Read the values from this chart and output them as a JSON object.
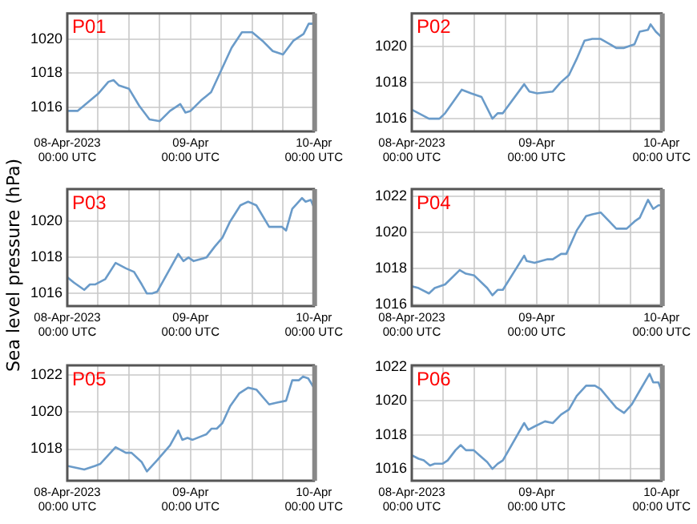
{
  "chart_data": [
    {
      "type": "line",
      "title": "P01",
      "color": "#6a9bc9",
      "grid": true,
      "xlim": [
        "2023-04-08T00:00",
        "2023-04-10T00:00"
      ],
      "ylim": [
        1014.6,
        1021.5
      ],
      "yticks": [
        1016,
        1018,
        1020
      ],
      "xticks": [
        {
          "value": "2023-04-08T00:00",
          "label": "08-Apr-2023\n00:00 UTC"
        },
        {
          "value": "2023-04-08T06:00",
          "label": null
        },
        {
          "value": "2023-04-08T12:00",
          "label": null
        },
        {
          "value": "2023-04-08T18:00",
          "label": null
        },
        {
          "value": "2023-04-09T00:00",
          "label": "09-Apr\n00:00 UTC"
        },
        {
          "value": "2023-04-09T06:00",
          "label": null
        },
        {
          "value": "2023-04-09T12:00",
          "label": null
        },
        {
          "value": "2023-04-09T18:00",
          "label": null
        },
        {
          "value": "2023-04-10T00:00",
          "label": "10-Apr\n00:00 UTC"
        }
      ],
      "x": [
        "2023-04-08T00:00",
        "2023-04-08T02:00",
        "2023-04-08T04:00",
        "2023-04-08T06:00",
        "2023-04-08T08:00",
        "2023-04-08T09:00",
        "2023-04-08T10:00",
        "2023-04-08T12:00",
        "2023-04-08T14:00",
        "2023-04-08T16:00",
        "2023-04-08T18:00",
        "2023-04-08T20:00",
        "2023-04-08T22:00",
        "2023-04-08T23:00",
        "2023-04-09T00:00",
        "2023-04-09T02:00",
        "2023-04-09T04:00",
        "2023-04-09T06:00",
        "2023-04-09T08:00",
        "2023-04-09T10:00",
        "2023-04-09T12:00",
        "2023-04-09T14:00",
        "2023-04-09T16:00",
        "2023-04-09T18:00",
        "2023-04-09T20:00",
        "2023-04-09T22:00",
        "2023-04-09T23:00",
        "2023-04-10T00:00"
      ],
      "values": [
        1015.8,
        1015.8,
        1016.3,
        1016.8,
        1017.5,
        1017.6,
        1017.3,
        1017.1,
        1016.1,
        1015.3,
        1015.2,
        1015.8,
        1016.2,
        1015.7,
        1015.8,
        1016.4,
        1016.9,
        1018.2,
        1019.5,
        1020.4,
        1020.4,
        1019.9,
        1019.3,
        1019.1,
        1019.9,
        1020.3,
        1020.9,
        1020.9
      ]
    },
    {
      "type": "line",
      "title": "P02",
      "color": "#6a9bc9",
      "grid": true,
      "xlim": [
        "2023-04-08T00:00",
        "2023-04-10T00:00"
      ],
      "ylim": [
        1015.3,
        1021.8
      ],
      "yticks": [
        1016,
        1018,
        1020
      ],
      "xticks": [
        {
          "value": "2023-04-08T00:00",
          "label": "08-Apr-2023\n00:00 UTC"
        },
        {
          "value": "2023-04-08T06:00",
          "label": null
        },
        {
          "value": "2023-04-08T12:00",
          "label": null
        },
        {
          "value": "2023-04-08T18:00",
          "label": null
        },
        {
          "value": "2023-04-09T00:00",
          "label": "09-Apr\n00:00 UTC"
        },
        {
          "value": "2023-04-09T06:00",
          "label": null
        },
        {
          "value": "2023-04-09T12:00",
          "label": null
        },
        {
          "value": "2023-04-09T18:00",
          "label": null
        },
        {
          "value": "2023-04-10T00:00",
          "label": "10-Apr\n00:00 UTC"
        }
      ],
      "x": [
        "2023-04-08T00:00",
        "2023-04-08T03:18",
        "2023-04-08T05:18",
        "2023-04-08T06:24",
        "2023-04-08T09:36",
        "2023-04-08T11:24",
        "2023-04-08T13:24",
        "2023-04-08T15:30",
        "2023-04-08T16:30",
        "2023-04-08T17:30",
        "2023-04-08T21:36",
        "2023-04-08T22:36",
        "2023-04-09T00:06",
        "2023-04-09T03:06",
        "2023-04-09T04:36",
        "2023-04-09T06:12",
        "2023-04-09T07:42",
        "2023-04-09T09:12",
        "2023-04-09T10:42",
        "2023-04-09T12:18",
        "2023-04-09T15:18",
        "2023-04-09T16:48",
        "2023-04-09T18:48",
        "2023-04-09T19:48",
        "2023-04-09T21:24",
        "2023-04-09T21:54",
        "2023-04-09T22:54",
        "2023-04-10T00:00"
      ],
      "values": [
        1016.5,
        1016.0,
        1016.0,
        1016.3,
        1017.6,
        1017.4,
        1017.2,
        1016.0,
        1016.3,
        1016.3,
        1017.9,
        1017.5,
        1017.4,
        1017.5,
        1018.0,
        1018.4,
        1019.3,
        1020.3,
        1020.4,
        1020.4,
        1019.9,
        1019.9,
        1020.1,
        1020.8,
        1020.9,
        1021.2,
        1020.8,
        1020.5
      ]
    },
    {
      "type": "line",
      "title": "P03",
      "ylabel": "Sea level pressure (hPa)",
      "color": "#6a9bc9",
      "grid": true,
      "xlim": [
        "2023-04-08T00:00",
        "2023-04-10T00:00"
      ],
      "ylim": [
        1015.3,
        1021.8
      ],
      "yticks": [
        1016,
        1018,
        1020
      ],
      "xticks": [
        {
          "value": "2023-04-08T00:00",
          "label": "08-Apr-2023\n00:00 UTC"
        },
        {
          "value": "2023-04-08T06:00",
          "label": null
        },
        {
          "value": "2023-04-08T12:00",
          "label": null
        },
        {
          "value": "2023-04-08T18:00",
          "label": null
        },
        {
          "value": "2023-04-09T00:00",
          "label": "09-Apr\n00:00 UTC"
        },
        {
          "value": "2023-04-09T06:00",
          "label": null
        },
        {
          "value": "2023-04-09T12:00",
          "label": null
        },
        {
          "value": "2023-04-09T18:00",
          "label": null
        },
        {
          "value": "2023-04-10T00:00",
          "label": "10-Apr\n00:00 UTC"
        }
      ],
      "x": [
        "2023-04-08T00:00",
        "2023-04-08T01:18",
        "2023-04-08T03:18",
        "2023-04-08T04:24",
        "2023-04-08T05:24",
        "2023-04-08T07:24",
        "2023-04-08T09:24",
        "2023-04-08T11:24",
        "2023-04-08T13:00",
        "2023-04-08T14:30",
        "2023-04-08T15:30",
        "2023-04-08T16:30",
        "2023-04-08T17:30",
        "2023-04-08T21:36",
        "2023-04-08T22:36",
        "2023-04-08T23:36",
        "2023-04-09T00:36",
        "2023-04-09T03:06",
        "2023-04-09T04:42",
        "2023-04-09T06:12",
        "2023-04-09T07:42",
        "2023-04-09T09:42",
        "2023-04-09T11:12",
        "2023-04-09T12:48",
        "2023-04-09T15:18",
        "2023-04-09T17:48",
        "2023-04-09T18:36",
        "2023-04-09T19:48",
        "2023-04-09T21:42",
        "2023-04-09T22:24",
        "2023-04-09T23:24",
        "2023-04-10T00:00"
      ],
      "values": [
        1016.9,
        1016.6,
        1016.2,
        1016.5,
        1016.5,
        1016.8,
        1017.7,
        1017.4,
        1017.2,
        1016.5,
        1016.0,
        1016.0,
        1016.1,
        1018.2,
        1017.8,
        1018.0,
        1017.8,
        1018.0,
        1018.6,
        1019.1,
        1020.0,
        1020.9,
        1021.1,
        1020.9,
        1019.7,
        1019.7,
        1019.5,
        1020.7,
        1021.3,
        1021.1,
        1021.2,
        1020.8
      ]
    },
    {
      "type": "line",
      "title": "P04",
      "color": "#6a9bc9",
      "grid": true,
      "xlim": [
        "2023-04-08T00:00",
        "2023-04-10T00:00"
      ],
      "ylim": [
        1015.9,
        1022.4
      ],
      "yticks": [
        1016,
        1018,
        1020,
        1022
      ],
      "xticks": [
        {
          "value": "2023-04-08T00:00",
          "label": "08-Apr-2023\n00:00 UTC"
        },
        {
          "value": "2023-04-08T06:00",
          "label": null
        },
        {
          "value": "2023-04-08T12:00",
          "label": null
        },
        {
          "value": "2023-04-08T18:00",
          "label": null
        },
        {
          "value": "2023-04-09T00:00",
          "label": "09-Apr\n00:00 UTC"
        },
        {
          "value": "2023-04-09T06:00",
          "label": null
        },
        {
          "value": "2023-04-09T12:00",
          "label": null
        },
        {
          "value": "2023-04-09T18:00",
          "label": null
        },
        {
          "value": "2023-04-10T00:00",
          "label": "10-Apr\n00:00 UTC"
        }
      ],
      "x": [
        "2023-04-08T00:00",
        "2023-04-08T01:18",
        "2023-04-08T03:18",
        "2023-04-08T04:24",
        "2023-04-08T06:24",
        "2023-04-08T09:12",
        "2023-04-08T10:24",
        "2023-04-08T12:00",
        "2023-04-08T14:30",
        "2023-04-08T15:30",
        "2023-04-08T16:30",
        "2023-04-08T17:30",
        "2023-04-08T21:36",
        "2023-04-08T22:06",
        "2023-04-08T23:36",
        "2023-04-09T02:06",
        "2023-04-09T03:06",
        "2023-04-09T04:42",
        "2023-04-09T05:42",
        "2023-04-09T07:42",
        "2023-04-09T09:30",
        "2023-04-09T10:42",
        "2023-04-09T12:18",
        "2023-04-09T15:18",
        "2023-04-09T17:18",
        "2023-04-09T18:48",
        "2023-04-09T19:48",
        "2023-04-09T21:24",
        "2023-04-09T22:24",
        "2023-04-09T23:24",
        "2023-04-10T00:00"
      ],
      "values": [
        1017.0,
        1016.9,
        1016.6,
        1016.9,
        1017.1,
        1017.9,
        1017.7,
        1017.6,
        1016.9,
        1016.5,
        1016.8,
        1016.8,
        1018.7,
        1018.4,
        1018.3,
        1018.5,
        1018.5,
        1018.8,
        1018.8,
        1020.1,
        1020.9,
        1021.0,
        1021.1,
        1020.2,
        1020.2,
        1020.6,
        1020.8,
        1021.8,
        1021.3,
        1021.5,
        1021.5
      ]
    },
    {
      "type": "line",
      "title": "P05",
      "color": "#6a9bc9",
      "grid": true,
      "xlim": [
        "2023-04-08T00:00",
        "2023-04-10T00:00"
      ],
      "ylim": [
        1016.3,
        1022.5
      ],
      "yticks": [
        1018,
        1020,
        1022
      ],
      "xticks": [
        {
          "value": "2023-04-08T00:00",
          "label": "08-Apr-2023\n00:00 UTC"
        },
        {
          "value": "2023-04-08T06:00",
          "label": null
        },
        {
          "value": "2023-04-08T12:00",
          "label": null
        },
        {
          "value": "2023-04-08T18:00",
          "label": null
        },
        {
          "value": "2023-04-09T00:00",
          "label": "09-Apr\n00:00 UTC"
        },
        {
          "value": "2023-04-09T06:00",
          "label": null
        },
        {
          "value": "2023-04-09T12:00",
          "label": null
        },
        {
          "value": "2023-04-09T18:00",
          "label": null
        },
        {
          "value": "2023-04-10T00:00",
          "label": "10-Apr\n00:00 UTC"
        }
      ],
      "x": [
        "2023-04-08T00:00",
        "2023-04-08T03:18",
        "2023-04-08T05:24",
        "2023-04-08T06:24",
        "2023-04-08T09:24",
        "2023-04-08T11:24",
        "2023-04-08T12:30",
        "2023-04-08T14:30",
        "2023-04-08T15:30",
        "2023-04-08T16:30",
        "2023-04-08T17:30",
        "2023-04-08T20:00",
        "2023-04-08T21:36",
        "2023-04-08T22:24",
        "2023-04-08T23:24",
        "2023-04-09T00:24",
        "2023-04-09T03:06",
        "2023-04-09T04:06",
        "2023-04-09T05:06",
        "2023-04-09T06:12",
        "2023-04-09T07:42",
        "2023-04-09T09:30",
        "2023-04-09T11:12",
        "2023-04-09T12:48",
        "2023-04-09T15:18",
        "2023-04-09T16:48",
        "2023-04-09T18:36",
        "2023-04-09T19:48",
        "2023-04-09T21:06",
        "2023-04-09T21:54",
        "2023-04-09T22:54",
        "2023-04-10T00:00"
      ],
      "values": [
        1017.1,
        1016.9,
        1017.1,
        1017.2,
        1018.1,
        1017.8,
        1017.8,
        1017.3,
        1016.8,
        1017.1,
        1017.4,
        1018.2,
        1019.0,
        1018.5,
        1018.6,
        1018.5,
        1018.8,
        1019.1,
        1019.1,
        1019.4,
        1020.3,
        1021.0,
        1021.3,
        1021.2,
        1020.4,
        1020.5,
        1020.6,
        1021.7,
        1021.7,
        1021.9,
        1021.8,
        1021.3
      ]
    },
    {
      "type": "line",
      "title": "P06",
      "color": "#6a9bc9",
      "grid": true,
      "xlim": [
        "2023-04-08T00:00",
        "2023-04-10T00:00"
      ],
      "ylim": [
        1015.3,
        1022.1
      ],
      "yticks": [
        1016,
        1018,
        1020,
        1022
      ],
      "xticks": [
        {
          "value": "2023-04-08T00:00",
          "label": "08-Apr-2023\n00:00 UTC"
        },
        {
          "value": "2023-04-08T06:00",
          "label": null
        },
        {
          "value": "2023-04-08T12:00",
          "label": null
        },
        {
          "value": "2023-04-08T18:00",
          "label": null
        },
        {
          "value": "2023-04-09T00:00",
          "label": "09-Apr\n00:00 UTC"
        },
        {
          "value": "2023-04-09T06:00",
          "label": null
        },
        {
          "value": "2023-04-09T12:00",
          "label": null
        },
        {
          "value": "2023-04-09T18:00",
          "label": null
        },
        {
          "value": "2023-04-10T00:00",
          "label": "10-Apr\n00:00 UTC"
        }
      ],
      "x": [
        "2023-04-08T00:00",
        "2023-04-08T01:18",
        "2023-04-08T02:18",
        "2023-04-08T03:30",
        "2023-04-08T04:24",
        "2023-04-08T05:54",
        "2023-04-08T06:54",
        "2023-04-08T08:24",
        "2023-04-08T09:24",
        "2023-04-08T10:24",
        "2023-04-08T11:54",
        "2023-04-08T13:00",
        "2023-04-08T14:30",
        "2023-04-08T15:30",
        "2023-04-08T16:30",
        "2023-04-08T17:30",
        "2023-04-08T21:36",
        "2023-04-08T22:24",
        "2023-04-08T23:36",
        "2023-04-09T01:36",
        "2023-04-09T03:06",
        "2023-04-09T04:42",
        "2023-04-09T06:12",
        "2023-04-09T07:42",
        "2023-04-09T09:30",
        "2023-04-09T11:12",
        "2023-04-09T12:18",
        "2023-04-09T15:18",
        "2023-04-09T16:48",
        "2023-04-09T18:18",
        "2023-04-09T19:48",
        "2023-04-09T21:42",
        "2023-04-09T22:24",
        "2023-04-09T23:24",
        "2023-04-10T00:00"
      ],
      "values": [
        1016.8,
        1016.6,
        1016.5,
        1016.2,
        1016.3,
        1016.3,
        1016.5,
        1017.1,
        1017.4,
        1017.1,
        1017.1,
        1016.8,
        1016.4,
        1016.0,
        1016.3,
        1016.5,
        1018.7,
        1018.3,
        1018.5,
        1018.8,
        1018.7,
        1019.2,
        1019.5,
        1020.3,
        1020.9,
        1020.9,
        1020.7,
        1019.6,
        1019.3,
        1019.8,
        1020.6,
        1021.6,
        1021.1,
        1021.1,
        1020.6
      ]
    }
  ]
}
